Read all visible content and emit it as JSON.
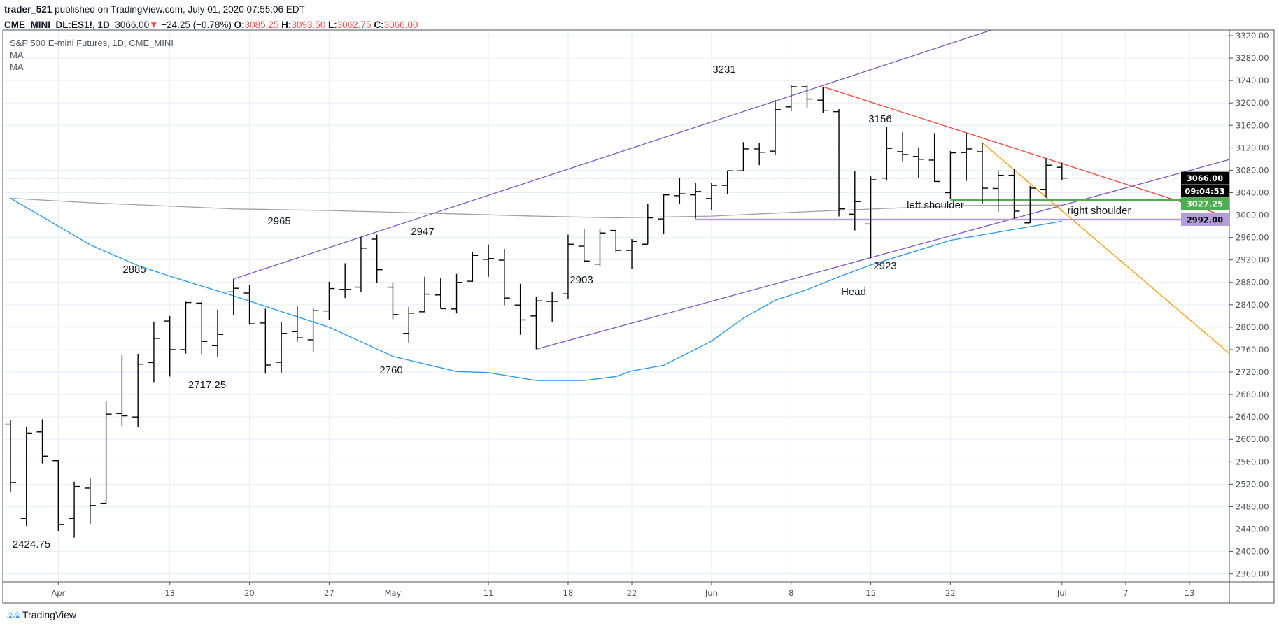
{
  "header": {
    "author": "trader_521",
    "published": "published on TradingView.com, July 01, 2020 07:55:06 EDT",
    "symbol": "CME_MINI_DL:ES1!, 1D",
    "last": "3066.00",
    "change": "−24.25 (−0.78%)",
    "change_icon": "down-triangle-icon",
    "o_label": "O:",
    "o": "3085.25",
    "h_label": "H:",
    "h": "3093.50",
    "l_label": "L:",
    "l": "3062.75",
    "c_label": "C:",
    "c": "3066.00"
  },
  "legend": {
    "title": "S&P 500 E-mini Futures, 1D, CME_MINI",
    "ma1": "MA",
    "ma2": "MA"
  },
  "footer": {
    "brand": "TradingView"
  },
  "colors": {
    "bars": "#000000",
    "ma_fast": "#2196f3",
    "ma_slow": "#a0a0a0",
    "channel": "#7e57c2",
    "red_trend": "#f44336",
    "orange_trend": "#ff9800",
    "neckline": "#4caf50",
    "support": "#b39ddb",
    "down": "#ef5350"
  },
  "chart_data": {
    "type": "ohlc",
    "ylim": [
      2340,
      3330
    ],
    "y_ticks": [
      "2360.00",
      "2400.00",
      "2440.00",
      "2480.00",
      "2520.00",
      "2560.00",
      "2600.00",
      "2640.00",
      "2680.00",
      "2720.00",
      "2760.00",
      "2800.00",
      "2840.00",
      "2880.00",
      "2920.00",
      "2960.00",
      "3000.00",
      "3040.00",
      "3080.00",
      "3120.00",
      "3160.00",
      "3200.00",
      "3240.00",
      "3280.00",
      "3320.00"
    ],
    "future_sessions": [
      "2020-07-02",
      "2020-07-03",
      "2020-07-06",
      "2020-07-07",
      "2020-07-08",
      "2020-07-09",
      "2020-07-10",
      "2020-07-13",
      "2020-07-14",
      "2020-07-15"
    ],
    "x_ticks": [
      {
        "label": "Apr",
        "date": "2020-04-01"
      },
      {
        "label": "13",
        "date": "2020-04-13"
      },
      {
        "label": "20",
        "date": "2020-04-20"
      },
      {
        "label": "27",
        "date": "2020-04-27"
      },
      {
        "label": "May",
        "date": "2020-05-01"
      },
      {
        "label": "11",
        "date": "2020-05-11"
      },
      {
        "label": "18",
        "date": "2020-05-18"
      },
      {
        "label": "22",
        "date": "2020-05-22"
      },
      {
        "label": "Jun",
        "date": "2020-06-01"
      },
      {
        "label": "8",
        "date": "2020-06-08"
      },
      {
        "label": "15",
        "date": "2020-06-15"
      },
      {
        "label": "22",
        "date": "2020-06-22"
      },
      {
        "label": "Jul",
        "date": "2020-07-01"
      },
      {
        "label": "7",
        "date": "2020-07-07"
      },
      {
        "label": "13",
        "date": "2020-07-13"
      }
    ],
    "columns": [
      "date",
      "open",
      "high",
      "low",
      "close"
    ],
    "bars": [
      [
        "2020-03-27",
        2627,
        2635,
        2506,
        2523
      ],
      [
        "2020-03-30",
        2459,
        2622.5,
        2445.5,
        2611
      ],
      [
        "2020-03-31",
        2613,
        2636,
        2557,
        2570
      ],
      [
        "2020-04-01",
        2562,
        2562.5,
        2436,
        2448
      ],
      [
        "2020-04-02",
        2459,
        2524.5,
        2424.75,
        2516
      ],
      [
        "2020-04-03",
        2513,
        2530,
        2449,
        2482
      ],
      [
        "2020-04-06",
        2486,
        2668,
        2486,
        2645
      ],
      [
        "2020-04-07",
        2646,
        2750,
        2624,
        2642
      ],
      [
        "2020-04-08",
        2640,
        2752.5,
        2621.5,
        2734
      ],
      [
        "2020-04-09",
        2737,
        2810,
        2702,
        2780
      ],
      [
        "2020-04-13",
        2811,
        2820,
        2712,
        2760
      ],
      [
        "2020-04-14",
        2760,
        2845.5,
        2753,
        2844
      ],
      [
        "2020-04-15",
        2843,
        2845,
        2752,
        2774.5
      ],
      [
        "2020-04-16",
        2767,
        2831.5,
        2746.5,
        2787
      ],
      [
        "2020-04-17",
        2863,
        2886,
        2822,
        2869.5
      ],
      [
        "2020-04-20",
        2861,
        2876,
        2806,
        2806
      ],
      [
        "2020-04-21",
        2807.5,
        2833,
        2717.25,
        2732.5
      ],
      [
        "2020-04-22",
        2737.5,
        2809,
        2719,
        2789
      ],
      [
        "2020-04-23",
        2792,
        2837.5,
        2774,
        2781
      ],
      [
        "2020-04-24",
        2777.5,
        2835,
        2756,
        2829.5
      ],
      [
        "2020-04-27",
        2829,
        2881,
        2813,
        2869
      ],
      [
        "2020-04-28",
        2867.5,
        2914,
        2852,
        2867.5
      ],
      [
        "2020-04-29",
        2871.5,
        2961,
        2862.5,
        2941
      ],
      [
        "2020-04-30",
        2957,
        2965,
        2879.5,
        2902.5
      ],
      [
        "2020-05-01",
        2871.5,
        2880,
        2814,
        2822.5
      ],
      [
        "2020-05-04",
        2789,
        2836,
        2772,
        2825
      ],
      [
        "2020-05-05",
        2827.5,
        2890,
        2827,
        2859
      ],
      [
        "2020-05-06",
        2857.5,
        2887,
        2833,
        2833
      ],
      [
        "2020-05-07",
        2832.5,
        2895,
        2824.5,
        2880
      ],
      [
        "2020-05-08",
        2882,
        2934,
        2881,
        2928
      ],
      [
        "2020-05-11",
        2921,
        2947.5,
        2890,
        2922.5
      ],
      [
        "2020-05-12",
        2919.5,
        2939.5,
        2839,
        2852
      ],
      [
        "2020-05-13",
        2839.5,
        2877.5,
        2786.5,
        2813
      ],
      [
        "2020-05-14",
        2820,
        2853.5,
        2760.75,
        2847
      ],
      [
        "2020-05-15",
        2846,
        2863,
        2810,
        2846
      ],
      [
        "2020-05-18",
        2859.5,
        2965,
        2850,
        2948
      ],
      [
        "2020-05-19",
        2944.5,
        2976,
        2915.5,
        2918
      ],
      [
        "2020-05-20",
        2912.5,
        2976,
        2909,
        2968
      ],
      [
        "2020-05-21",
        2972.5,
        2972.5,
        2934,
        2937
      ],
      [
        "2020-05-22",
        2937,
        2957,
        2904,
        2953
      ],
      [
        "2020-05-26",
        2948,
        3019.5,
        2948,
        2995
      ],
      [
        "2020-05-27",
        2993,
        3038,
        2966,
        3036
      ],
      [
        "2020-05-28",
        3034.5,
        3066,
        3020,
        3038
      ],
      [
        "2020-05-29",
        3036,
        3058,
        2994,
        3042
      ],
      [
        "2020-06-01",
        3029.5,
        3058,
        3009,
        3053
      ],
      [
        "2020-06-02",
        3053,
        3079,
        3037,
        3079
      ],
      [
        "2020-06-03",
        3079,
        3130,
        3079,
        3118
      ],
      [
        "2020-06-04",
        3118,
        3128,
        3089,
        3112
      ],
      [
        "2020-06-05",
        3114,
        3205,
        3107.5,
        3188
      ],
      [
        "2020-06-08",
        3193,
        3231.5,
        3185,
        3229
      ],
      [
        "2020-06-09",
        3229,
        3231.5,
        3191,
        3207
      ],
      [
        "2020-06-10",
        3205,
        3229,
        3182,
        3187
      ],
      [
        "2020-06-11",
        3184.5,
        3189,
        2997.5,
        3011
      ],
      [
        "2020-06-12",
        3001.5,
        3078,
        2972.5,
        3024
      ],
      [
        "2020-06-15",
        2984,
        3069,
        2923,
        3063
      ],
      [
        "2020-06-16",
        3066,
        3157.5,
        3062,
        3119
      ],
      [
        "2020-06-17",
        3113,
        3148,
        3096,
        3108
      ],
      [
        "2020-06-18",
        3104.5,
        3120.5,
        3066.5,
        3099.5
      ],
      [
        "2020-06-19",
        3098,
        3146,
        3059.5,
        3060
      ],
      [
        "2020-06-22",
        3040,
        3114,
        3029,
        3111
      ],
      [
        "2020-06-23",
        3111.5,
        3146,
        3061,
        3118
      ],
      [
        "2020-06-24",
        3113,
        3129,
        3020,
        3048
      ],
      [
        "2020-06-25",
        3047.5,
        3080,
        3006,
        3071
      ],
      [
        "2020-06-26",
        3071,
        3083,
        2994,
        3007
      ],
      [
        "2020-06-29",
        2986,
        3052,
        2986,
        3048
      ],
      [
        "2020-06-30",
        3046,
        3101,
        3031,
        3089
      ],
      [
        "2020-07-01",
        3085.25,
        3093.5,
        3062.75,
        3066
      ]
    ],
    "ma_fast": [
      [
        "2020-03-27",
        3030
      ],
      [
        "2020-04-03",
        2947
      ],
      [
        "2020-04-08",
        2910
      ],
      [
        "2020-04-13",
        2891
      ],
      [
        "2020-04-17",
        2856
      ],
      [
        "2020-04-27",
        2800
      ],
      [
        "2020-05-01",
        2748
      ],
      [
        "2020-05-07",
        2721
      ],
      [
        "2020-05-11",
        2719
      ],
      [
        "2020-05-14",
        2705
      ],
      [
        "2020-05-19",
        2705
      ],
      [
        "2020-05-21",
        2712
      ],
      [
        "2020-05-22",
        2722
      ],
      [
        "2020-05-27",
        2732
      ],
      [
        "2020-06-01",
        2775
      ],
      [
        "2020-06-03",
        2816
      ],
      [
        "2020-06-05",
        2848
      ],
      [
        "2020-06-09",
        2867
      ],
      [
        "2020-06-11",
        2890
      ],
      [
        "2020-06-15",
        2911
      ],
      [
        "2020-06-22",
        2955
      ],
      [
        "2020-07-01",
        2989
      ]
    ],
    "ma_slow": [
      [
        "2020-03-27",
        3030
      ],
      [
        "2020-04-03",
        3022
      ],
      [
        "2020-04-13",
        3016
      ],
      [
        "2020-04-17",
        3011
      ],
      [
        "2020-04-27",
        3008
      ],
      [
        "2020-05-07",
        3002
      ],
      [
        "2020-05-14",
        2998
      ],
      [
        "2020-05-21",
        2995
      ],
      [
        "2020-06-01",
        2998
      ],
      [
        "2020-06-09",
        3006
      ],
      [
        "2020-06-17",
        3013
      ],
      [
        "2020-06-23",
        3017
      ],
      [
        "2020-07-01",
        3018
      ]
    ],
    "trendlines": [
      {
        "name": "upper-channel",
        "color": "channel",
        "p1": [
          "2020-04-17",
          2886
        ],
        "p2": [
          "2020-06-09",
          3222
        ],
        "extend_right": true
      },
      {
        "name": "lower-channel",
        "color": "channel",
        "p1": [
          "2020-05-14",
          2760.75
        ],
        "p2": [
          "2020-06-26",
          2994
        ],
        "extend_right": true
      },
      {
        "name": "red-downtrend",
        "color": "red_trend",
        "p1": [
          "2020-06-10",
          3229
        ],
        "p2": [
          "2020-06-30",
          3101
        ],
        "extend_right": true
      },
      {
        "name": "orange-downtrend",
        "color": "orange_trend",
        "p1": [
          "2020-06-24",
          3129
        ],
        "p2": [
          "2020-06-30",
          3032
        ],
        "extend_right": true
      }
    ],
    "horizontal_lines": [
      {
        "name": "neckline",
        "color": "neckline",
        "from": "2020-06-22",
        "price": 3027.25,
        "label": "3027.25"
      },
      {
        "name": "support",
        "color": "support",
        "from": "2020-05-29",
        "price": 2992.0,
        "label": "2992.00"
      }
    ],
    "last_price": {
      "price": 3066.0,
      "label": "3066.00",
      "countdown": "09:04:53"
    },
    "annotations": [
      "3231",
      "3156",
      "2965",
      "2947",
      "2885",
      "2903",
      "2717.25",
      "2760",
      "2424.75",
      "2923",
      "Head",
      "left shoulder",
      "right shoulder"
    ]
  }
}
